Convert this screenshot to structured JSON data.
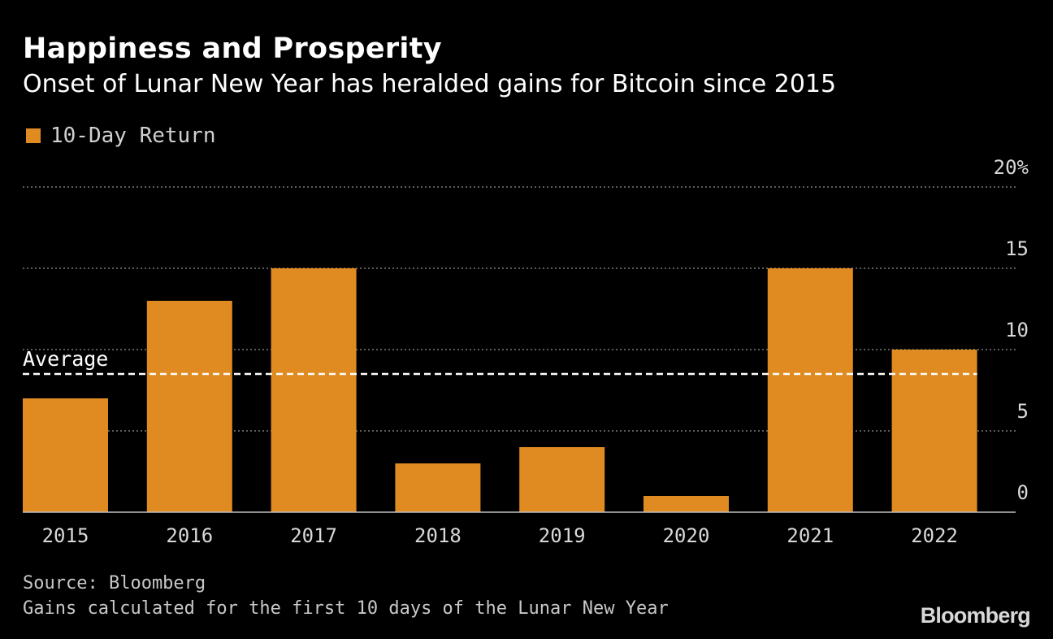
{
  "title": "Happiness and Prosperity",
  "subtitle": "Onset of Lunar New Year has heralded gains for Bitcoin since 2015",
  "footnotes": {
    "source": "Source: Bloomberg",
    "note": "Gains calculated for the first 10 days of the Lunar New Year"
  },
  "logo": "Bloomberg",
  "colors": {
    "background": "#000000",
    "bar": "#E08A22",
    "grid": "#7a7a7a",
    "average_line": "#ffffff",
    "text": "#ffffff"
  },
  "chart_data": {
    "type": "bar",
    "categories": [
      "2015",
      "2016",
      "2017",
      "2018",
      "2019",
      "2020",
      "2021",
      "2022"
    ],
    "series": [
      {
        "name": "10-Day Return",
        "values": [
          7,
          13,
          15,
          3,
          4,
          1,
          15,
          10
        ]
      }
    ],
    "y_ticks": [
      {
        "value": 0,
        "label": "0"
      },
      {
        "value": 5,
        "label": "5"
      },
      {
        "value": 10,
        "label": "10"
      },
      {
        "value": 15,
        "label": "15"
      },
      {
        "value": 20,
        "label": "20%"
      }
    ],
    "ylim": [
      0,
      20
    ],
    "y_axis_side": "right",
    "grid": "horizontal dotted",
    "legend_position": "top-left",
    "average": {
      "label": "Average",
      "value": 8.5
    }
  }
}
